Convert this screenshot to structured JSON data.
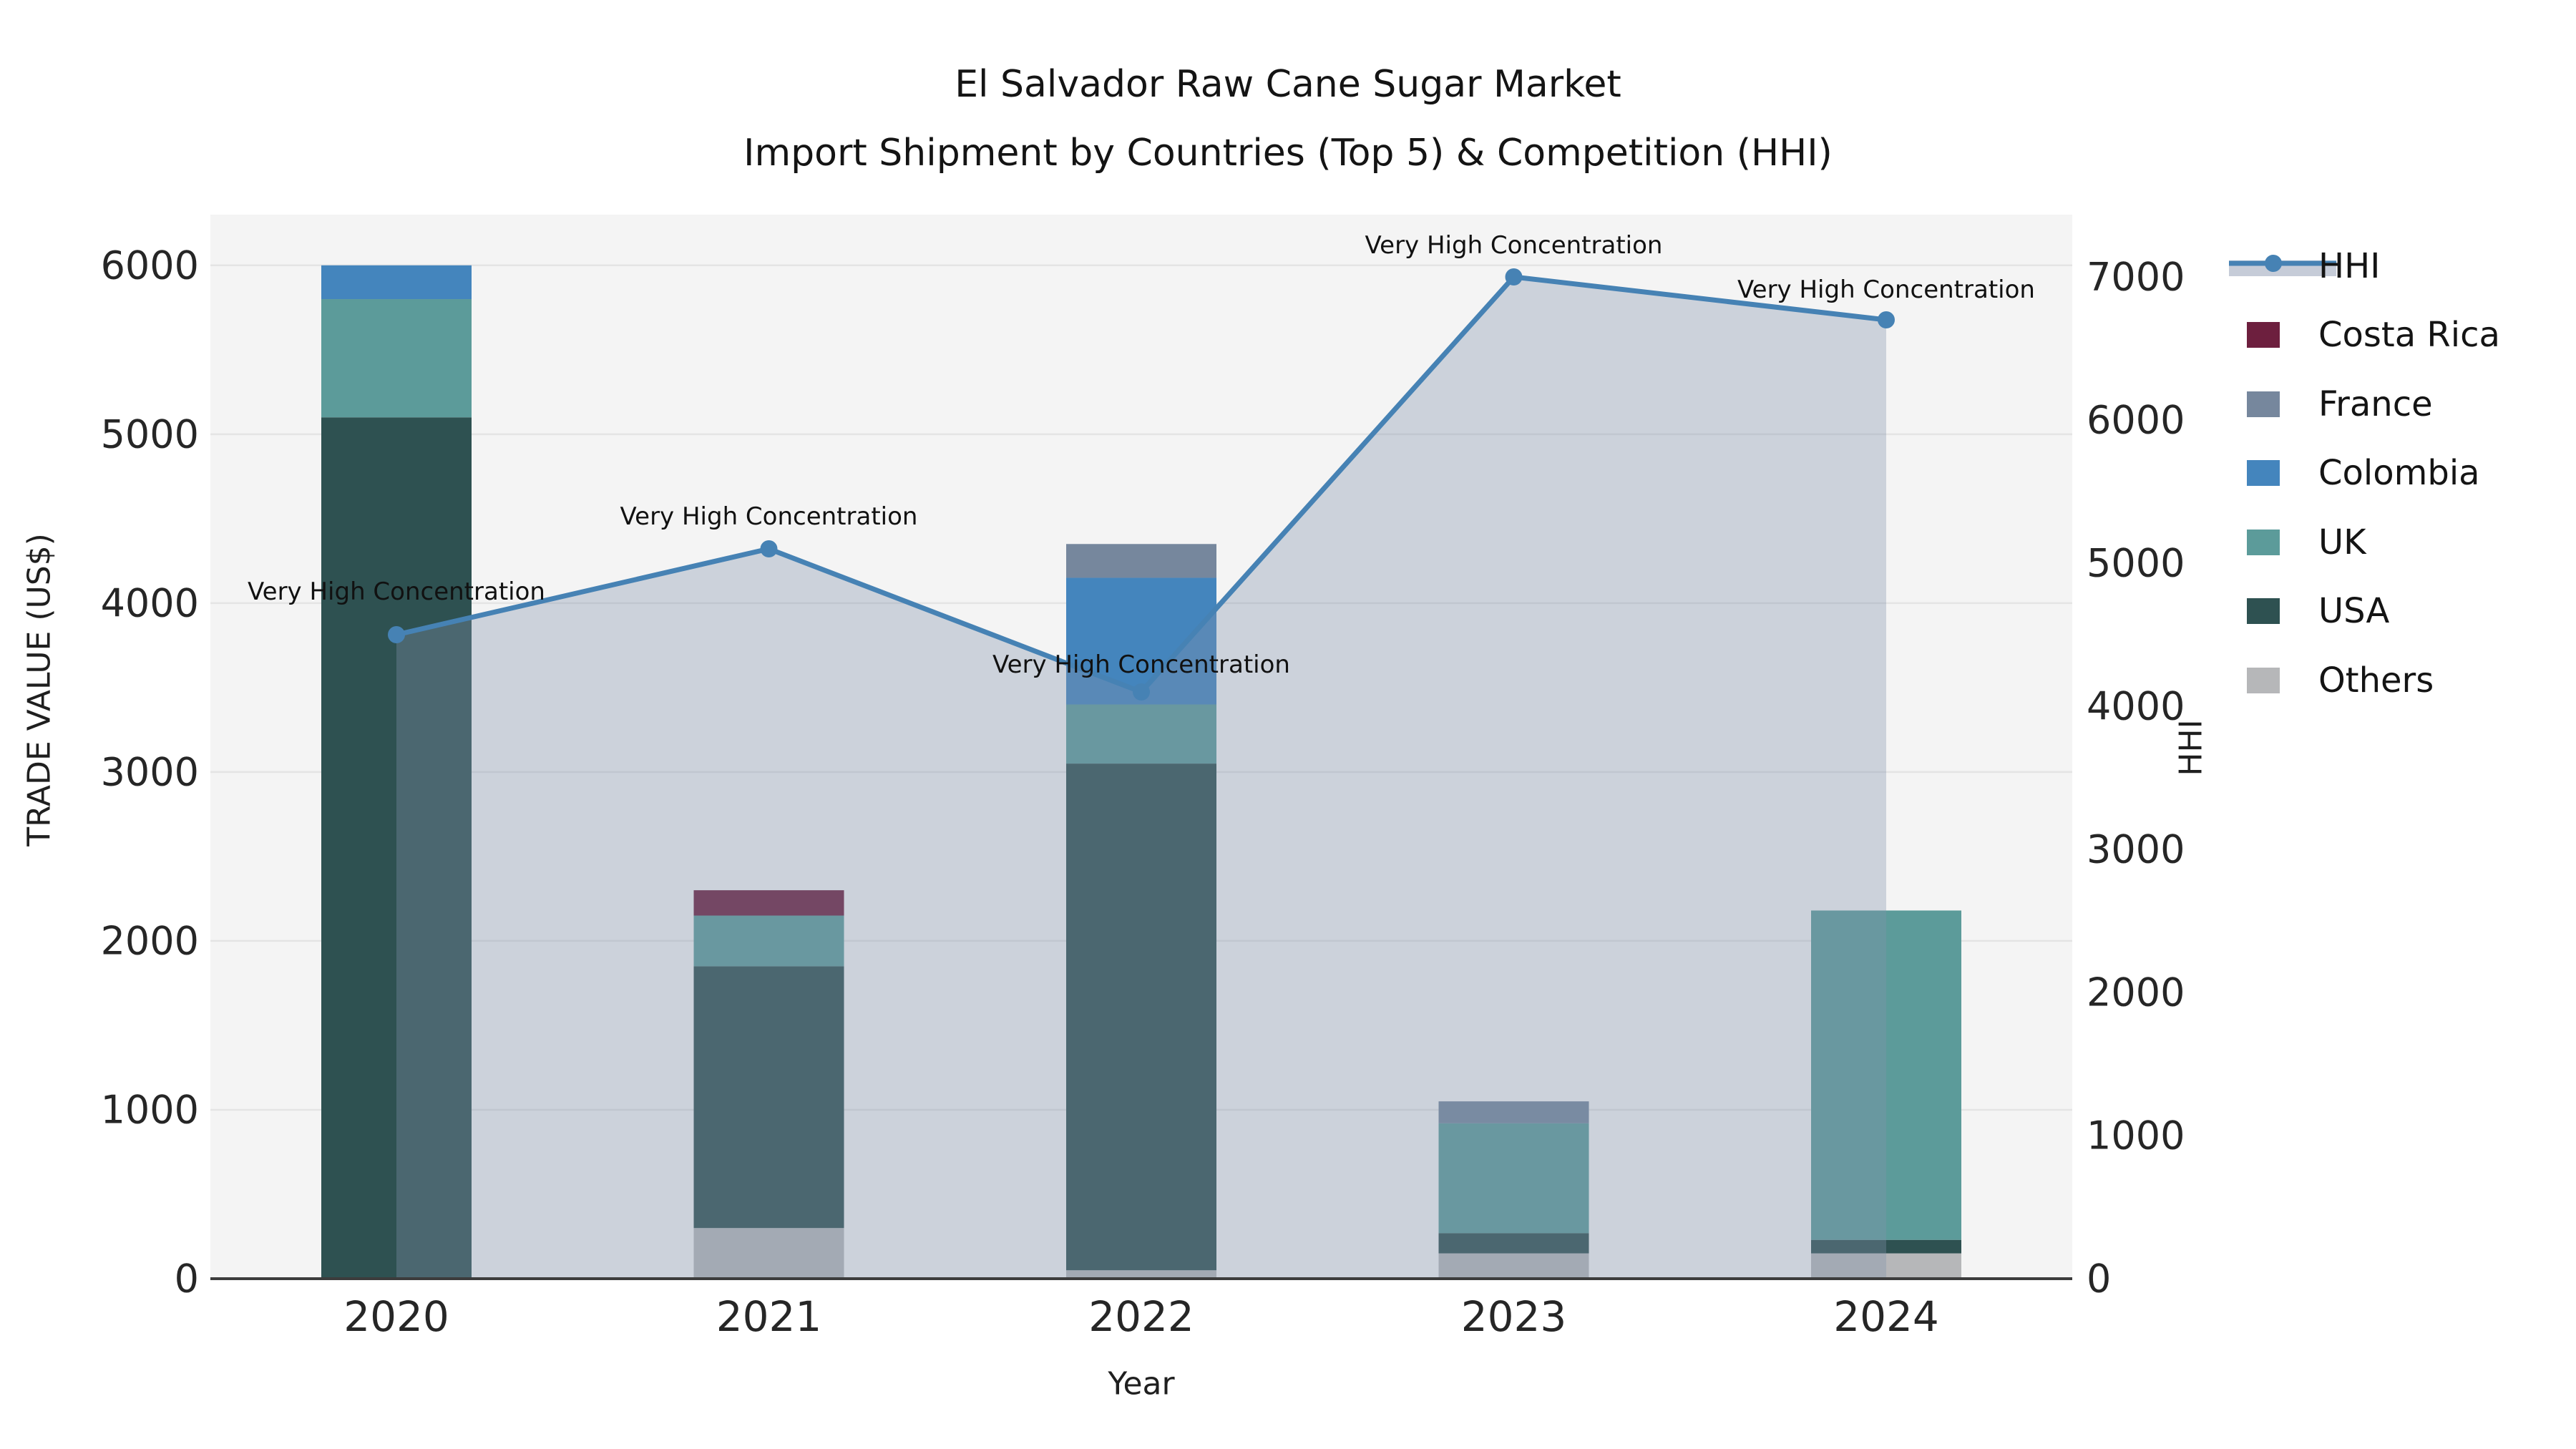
{
  "title": {
    "line1": "El Salvador Raw Cane Sugar Market",
    "line2": "Import Shipment by Countries (Top 5) & Competition (HHI)"
  },
  "axes": {
    "left": {
      "label": "TRADE VALUE (US$)",
      "ticks": [
        "0",
        "1000",
        "2000",
        "3000",
        "4000",
        "5000",
        "6000"
      ]
    },
    "right": {
      "label": "HHI",
      "ticks": [
        "0",
        "1000",
        "2000",
        "3000",
        "4000",
        "5000",
        "6000",
        "7000"
      ]
    },
    "x": {
      "label": "Year",
      "categories": [
        "2020",
        "2021",
        "2022",
        "2023",
        "2024"
      ]
    }
  },
  "legend": {
    "items": [
      {
        "label": "HHI",
        "type": "line",
        "color": "#4682B4",
        "band": "#C6CCD8"
      },
      {
        "label": "Costa Rica",
        "type": "swatch",
        "color": "#6D1F3E"
      },
      {
        "label": "France",
        "type": "swatch",
        "color": "#76879D"
      },
      {
        "label": "Colombia",
        "type": "swatch",
        "color": "#4485BD"
      },
      {
        "label": "UK",
        "type": "swatch",
        "color": "#5C9B9A"
      },
      {
        "label": "USA",
        "type": "swatch",
        "color": "#2E5151"
      },
      {
        "label": "Others",
        "type": "swatch",
        "color": "#B6B7B9"
      }
    ]
  },
  "chart_data": {
    "type": "bar+line",
    "title": "El Salvador Raw Cane Sugar Market — Import Shipment by Countries (Top 5) & Competition (HHI)",
    "categories": [
      "2020",
      "2021",
      "2022",
      "2023",
      "2024"
    ],
    "stack_order_note": "series listed bottom-to-top of stack",
    "series": [
      {
        "name": "Others",
        "color": "#B6B7B9",
        "values": [
          0,
          300,
          50,
          150,
          150
        ]
      },
      {
        "name": "USA",
        "color": "#2E5151",
        "values": [
          5100,
          1550,
          3000,
          120,
          80
        ]
      },
      {
        "name": "UK",
        "color": "#5C9B9A",
        "values": [
          700,
          300,
          350,
          650,
          1950
        ]
      },
      {
        "name": "Colombia",
        "color": "#4485BD",
        "values": [
          200,
          0,
          750,
          0,
          0
        ]
      },
      {
        "name": "France",
        "color": "#76879D",
        "values": [
          0,
          0,
          200,
          130,
          0
        ]
      },
      {
        "name": "Costa Rica",
        "color": "#6D1F3E",
        "values": [
          0,
          150,
          0,
          0,
          0
        ]
      }
    ],
    "bar_totals": [
      6000,
      2300,
      4350,
      1050,
      2180
    ],
    "line_series": {
      "name": "HHI",
      "color": "#4682B4",
      "area_color_rgba": [
        130,
        145,
        172,
        0.35
      ],
      "values": [
        4500,
        5100,
        4100,
        7000,
        6700
      ]
    },
    "annotations": [
      {
        "text": "Very High Concentration",
        "category": "2020",
        "hhi": 4500,
        "dy": -60
      },
      {
        "text": "Very High Concentration",
        "category": "2021",
        "hhi": 5100,
        "dy": -45
      },
      {
        "text": "Very High Concentration",
        "category": "2022",
        "hhi": 4100,
        "dy": -38
      },
      {
        "text": "Very High Concentration",
        "category": "2023",
        "hhi": 7000,
        "dy": -44
      },
      {
        "text": "Very High Concentration",
        "category": "2024",
        "hhi": 6700,
        "dy": -42
      }
    ],
    "xlabel": "Year",
    "ylabel_left": "TRADE VALUE (US$)",
    "ylabel_right": "HHI",
    "ylim_left": [
      0,
      6300
    ],
    "ylim_right": [
      0,
      7435
    ],
    "grid": true,
    "legend_position": "right",
    "style": {
      "plot_bg": "#F4F4F4",
      "grid_color": "#E4E4E4",
      "spine_color": "#3C3C3C",
      "text_color": "#262626"
    }
  }
}
